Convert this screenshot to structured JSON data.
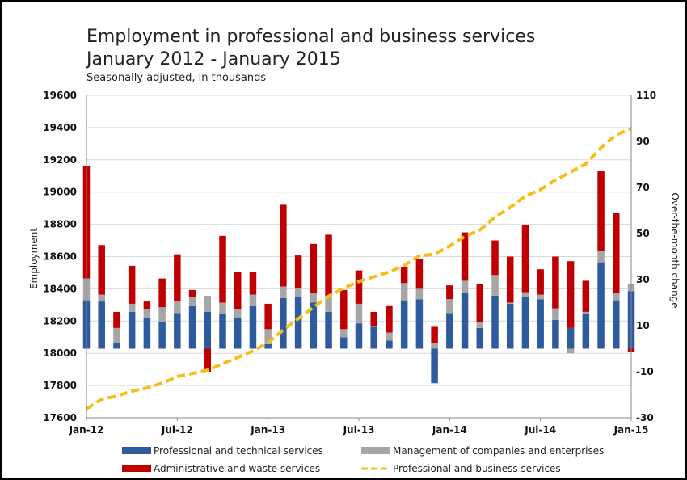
{
  "chart_data": {
    "type": "bar",
    "title_line1": "Employment in professional and business services",
    "title_line2": "January 2012 - January 2015",
    "subtitle": "Seasonally adjusted, in thousands",
    "ylabel_left": "Employment",
    "ylabel_right": "Over-the-month change",
    "ylim_left": [
      17600,
      19600
    ],
    "ylim_right": [
      -30,
      110
    ],
    "yticks_left": [
      17600,
      17800,
      18000,
      18200,
      18400,
      18600,
      18800,
      19000,
      19200,
      19400,
      19600
    ],
    "yticks_right": [
      -30,
      -10,
      10,
      30,
      50,
      70,
      90,
      110
    ],
    "x_tick_labels": [
      "Jan-12",
      "Jul-12",
      "Jan-13",
      "Jul-13",
      "Jan-14",
      "Jul-14",
      "Jan-15"
    ],
    "x_tick_indices": [
      0,
      6,
      12,
      18,
      24,
      30,
      36
    ],
    "legend_position": "bottom",
    "grid": true,
    "colors": {
      "professional_technical": "#2E5B9E",
      "management": "#A6A6A6",
      "administrative": "#C00000",
      "line": "#F5BE1B"
    },
    "series": [
      {
        "name": "Professional and technical services",
        "chart": "stacked-bar-right-axis",
        "values": [
          21,
          20.5,
          2.5,
          16,
          13.5,
          11.5,
          15.5,
          18.5,
          16,
          15,
          13.5,
          18.5,
          2,
          22,
          22.5,
          20,
          16,
          5,
          11,
          9.5,
          3.5,
          21,
          21.5,
          -15,
          15.5,
          24.5,
          9,
          23,
          19.5,
          22.5,
          21.5,
          12.5,
          9,
          15,
          37.5,
          21,
          25
        ]
      },
      {
        "name": "Management of companies and enterprises",
        "chart": "stacked-bar-right-axis",
        "values": [
          9.5,
          3,
          6.5,
          3.5,
          3.5,
          6.5,
          5,
          4,
          7,
          5,
          3.5,
          5,
          6.5,
          5,
          4,
          4,
          7,
          3.5,
          8.5,
          0.5,
          3.5,
          7.5,
          4.5,
          2.5,
          6,
          5,
          2.5,
          9,
          0.5,
          2,
          2,
          5,
          -2,
          1,
          5,
          3,
          3
        ]
      },
      {
        "name": "Administrative and waste services",
        "chart": "stacked-bar-right-axis",
        "values": [
          49,
          21.5,
          7,
          16.5,
          3.5,
          12.5,
          20.5,
          3,
          -10,
          29,
          16.5,
          10,
          11,
          35.5,
          14,
          21.5,
          26.5,
          17,
          14.5,
          6,
          11.5,
          7,
          13,
          7,
          6,
          21,
          16.5,
          15,
          20,
          29,
          11,
          22.5,
          29,
          13.5,
          34.5,
          35,
          -1.5
        ]
      },
      {
        "name": "Professional and business services",
        "chart": "line-left-axis",
        "values": [
          17655,
          17715,
          17735,
          17765,
          17785,
          17815,
          17855,
          17875,
          17895,
          17935,
          17975,
          18015,
          18065,
          18145,
          18215,
          18285,
          18355,
          18405,
          18445,
          18475,
          18505,
          18545,
          18605,
          18615,
          18665,
          18725,
          18765,
          18845,
          18905,
          18975,
          19015,
          19075,
          19125,
          19175,
          19275,
          19355,
          19395
        ]
      }
    ]
  }
}
